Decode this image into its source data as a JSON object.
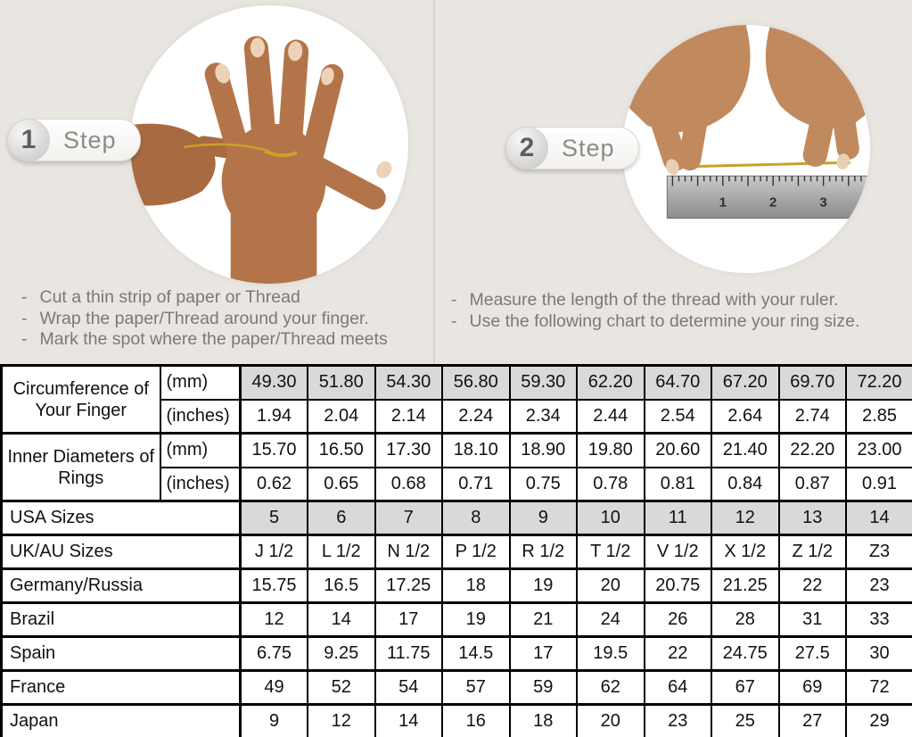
{
  "ui": {
    "bullet_dash": "-"
  },
  "steps": [
    {
      "badge_number": "1",
      "badge_label": "Step",
      "image": "hand-with-thread-around-finger-photo",
      "bullets": [
        "Cut a thin strip of paper or Thread",
        "Wrap the paper/Thread around your finger.",
        "Mark the spot where the paper/Thread meets"
      ]
    },
    {
      "badge_number": "2",
      "badge_label": "Step",
      "image": "hands-measuring-thread-with-ruler-photo",
      "bullets": [
        "Measure the length of the thread with your ruler.",
        "Use the following chart to determine your ring size."
      ]
    }
  ],
  "colors": {
    "top_background": "#e9e6e1",
    "shaded_cell": "#d9d9d9",
    "table_border": "#000000",
    "instruction_text": "#7b7977",
    "thread_gold": "#c9a227"
  },
  "chart_data": {
    "type": "table",
    "title": "Ring Size Conversion Chart",
    "columns_count": 10,
    "row_groups": [
      {
        "label": "Circumference of Your Finger",
        "rows": [
          {
            "sublabel": "(mm)",
            "shaded": true,
            "values": [
              "49.30",
              "51.80",
              "54.30",
              "56.80",
              "59.30",
              "62.20",
              "64.70",
              "67.20",
              "69.70",
              "72.20"
            ]
          },
          {
            "sublabel": "(inches)",
            "shaded": false,
            "values": [
              "1.94",
              "2.04",
              "2.14",
              "2.24",
              "2.34",
              "2.44",
              "2.54",
              "2.64",
              "2.74",
              "2.85"
            ]
          }
        ]
      },
      {
        "label": "Inner Diameters of Rings",
        "rows": [
          {
            "sublabel": "(mm)",
            "shaded": false,
            "values": [
              "15.70",
              "16.50",
              "17.30",
              "18.10",
              "18.90",
              "19.80",
              "20.60",
              "21.40",
              "22.20",
              "23.00"
            ]
          },
          {
            "sublabel": "(inches)",
            "shaded": false,
            "values": [
              "0.62",
              "0.65",
              "0.68",
              "0.71",
              "0.75",
              "0.78",
              "0.81",
              "0.84",
              "0.87",
              "0.91"
            ]
          }
        ]
      }
    ],
    "size_rows": [
      {
        "label": "USA Sizes",
        "shaded": true,
        "values": [
          "5",
          "6",
          "7",
          "8",
          "9",
          "10",
          "11",
          "12",
          "13",
          "14"
        ]
      },
      {
        "label": "UK/AU Sizes",
        "shaded": false,
        "values": [
          "J 1/2",
          "L 1/2",
          "N 1/2",
          "P 1/2",
          "R 1/2",
          "T 1/2",
          "V 1/2",
          "X 1/2",
          "Z 1/2",
          "Z3"
        ]
      },
      {
        "label": "Germany/Russia",
        "shaded": false,
        "values": [
          "15.75",
          "16.5",
          "17.25",
          "18",
          "19",
          "20",
          "20.75",
          "21.25",
          "22",
          "23"
        ]
      },
      {
        "label": "Brazil",
        "shaded": false,
        "values": [
          "12",
          "14",
          "17",
          "19",
          "21",
          "24",
          "26",
          "28",
          "31",
          "33"
        ]
      },
      {
        "label": "Spain",
        "shaded": false,
        "values": [
          "6.75",
          "9.25",
          "11.75",
          "14.5",
          "17",
          "19.5",
          "22",
          "24.75",
          "27.5",
          "30"
        ]
      },
      {
        "label": "France",
        "shaded": false,
        "values": [
          "49",
          "52",
          "54",
          "57",
          "59",
          "62",
          "64",
          "67",
          "69",
          "72"
        ]
      },
      {
        "label": "Japan",
        "shaded": false,
        "values": [
          "9",
          "12",
          "14",
          "16",
          "18",
          "20",
          "23",
          "25",
          "27",
          "29"
        ]
      }
    ]
  }
}
